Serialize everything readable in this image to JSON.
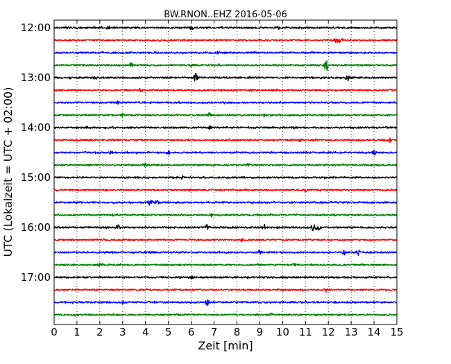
{
  "chart_data": {
    "type": "line",
    "subtype": "seismic-helicorder",
    "title": "BW.RNON..EHZ 2016-05-06",
    "xlabel": "Zeit  [min]",
    "ylabel": "UTC (Lokalzeit = UTC + 02:00)",
    "xlim": [
      0,
      15
    ],
    "x_ticks": [
      "0",
      "1",
      "2",
      "3",
      "4",
      "5",
      "6",
      "7",
      "8",
      "9",
      "10",
      "11",
      "12",
      "13",
      "14",
      "15"
    ],
    "y_tick_labels": [
      "12:00",
      "13:00",
      "14:00",
      "15:00",
      "16:00",
      "17:00"
    ],
    "grid": "vertical dotted at each minute",
    "line_colors": [
      "#000000",
      "#ff0000",
      "#0000ff",
      "#008000"
    ],
    "traces": [
      {
        "start": "12:00",
        "events": [
          {
            "t": 0.55,
            "amp": 3
          },
          {
            "t": 2.4,
            "amp": 2
          },
          {
            "t": 6.0,
            "amp": 3
          },
          {
            "t": 9.8,
            "amp": 2
          }
        ]
      },
      {
        "start": "12:15",
        "events": [
          {
            "t": 12.35,
            "amp": 5
          },
          {
            "t": 12.55,
            "amp": 4
          }
        ]
      },
      {
        "start": "12:30",
        "events": [
          {
            "t": 7.2,
            "amp": 2
          }
        ]
      },
      {
        "start": "12:45",
        "events": [
          {
            "t": 3.4,
            "amp": 4
          },
          {
            "t": 11.9,
            "amp": 10
          },
          {
            "t": 6.0,
            "amp": 2
          }
        ]
      },
      {
        "start": "13:00",
        "events": [
          {
            "t": 6.2,
            "amp": 7
          },
          {
            "t": 12.85,
            "amp": 5
          },
          {
            "t": 1.8,
            "amp": 2
          }
        ]
      },
      {
        "start": "13:15",
        "events": [
          {
            "t": 3.8,
            "amp": 3
          },
          {
            "t": 8.6,
            "amp": 2
          }
        ]
      },
      {
        "start": "13:30",
        "events": [
          {
            "t": 2.8,
            "amp": 2
          }
        ]
      },
      {
        "start": "13:45",
        "events": [
          {
            "t": 6.8,
            "amp": 3
          },
          {
            "t": 9.2,
            "amp": 3
          },
          {
            "t": 3.0,
            "amp": 2
          }
        ]
      },
      {
        "start": "14:00",
        "events": [
          {
            "t": 6.8,
            "amp": 3
          },
          {
            "t": 10.5,
            "amp": 2
          },
          {
            "t": 1.5,
            "amp": 2
          }
        ]
      },
      {
        "start": "14:15",
        "events": [
          {
            "t": 10.8,
            "amp": 2
          },
          {
            "t": 14.7,
            "amp": 3
          }
        ]
      },
      {
        "start": "14:30",
        "events": [
          {
            "t": 5.0,
            "amp": 3
          },
          {
            "t": 14.0,
            "amp": 3
          },
          {
            "t": 2.5,
            "amp": 2
          }
        ]
      },
      {
        "start": "14:45",
        "events": [
          {
            "t": 4.0,
            "amp": 2
          },
          {
            "t": 8.5,
            "amp": 2
          }
        ]
      },
      {
        "start": "15:00",
        "events": [
          {
            "t": 5.6,
            "amp": 2
          }
        ]
      },
      {
        "start": "15:15",
        "events": [
          {
            "t": 11.0,
            "amp": 2
          }
        ]
      },
      {
        "start": "15:30",
        "events": [
          {
            "t": 4.2,
            "amp": 5
          },
          {
            "t": 4.5,
            "amp": 4
          }
        ]
      },
      {
        "start": "15:45",
        "events": [
          {
            "t": 6.9,
            "amp": 2
          }
        ]
      },
      {
        "start": "16:00",
        "events": [
          {
            "t": 2.8,
            "amp": 3
          },
          {
            "t": 6.7,
            "amp": 4
          },
          {
            "t": 9.2,
            "amp": 4
          },
          {
            "t": 11.35,
            "amp": 6
          },
          {
            "t": 11.55,
            "amp": 5
          }
        ]
      },
      {
        "start": "16:15",
        "events": [
          {
            "t": 8.2,
            "amp": 2
          }
        ]
      },
      {
        "start": "16:30",
        "events": [
          {
            "t": 9.0,
            "amp": 3
          },
          {
            "t": 12.7,
            "amp": 3
          },
          {
            "t": 13.3,
            "amp": 4
          }
        ]
      },
      {
        "start": "16:45",
        "events": [
          {
            "t": 2.0,
            "amp": 2
          },
          {
            "t": 10.5,
            "amp": 2
          }
        ]
      },
      {
        "start": "17:00",
        "events": [
          {
            "t": 6.0,
            "amp": 2
          }
        ]
      },
      {
        "start": "17:15",
        "events": [
          {
            "t": 11.9,
            "amp": 2
          }
        ]
      },
      {
        "start": "17:30",
        "events": [
          {
            "t": 6.7,
            "amp": 5
          },
          {
            "t": 3.0,
            "amp": 2
          }
        ]
      },
      {
        "start": "17:45",
        "events": [
          {
            "t": 9.5,
            "amp": 2
          }
        ]
      }
    ]
  }
}
